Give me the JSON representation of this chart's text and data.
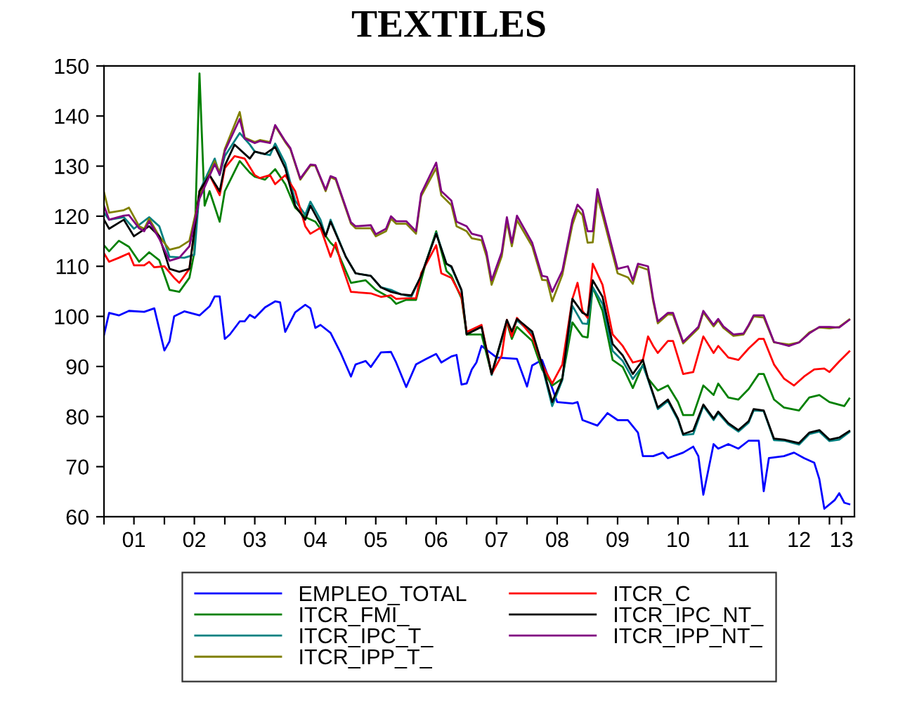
{
  "chart_data": {
    "type": "line",
    "title": "TEXTILES",
    "xlim": [
      "2001-01",
      "2013-06"
    ],
    "ylim": [
      60,
      150
    ],
    "yticks": [
      60,
      70,
      80,
      90,
      100,
      110,
      120,
      130,
      140,
      150
    ],
    "xticks": [
      {
        "value": "2001-01",
        "label": null
      },
      {
        "value": "2001-07",
        "label": "01"
      },
      {
        "value": "2002-01",
        "label": null
      },
      {
        "value": "2002-07",
        "label": "02"
      },
      {
        "value": "2003-01",
        "label": null
      },
      {
        "value": "2003-07",
        "label": "03"
      },
      {
        "value": "2004-01",
        "label": null
      },
      {
        "value": "2004-07",
        "label": "04"
      },
      {
        "value": "2005-01",
        "label": null
      },
      {
        "value": "2005-07",
        "label": "05"
      },
      {
        "value": "2006-01",
        "label": null
      },
      {
        "value": "2006-07",
        "label": "06"
      },
      {
        "value": "2007-01",
        "label": null
      },
      {
        "value": "2007-07",
        "label": "07"
      },
      {
        "value": "2008-01",
        "label": null
      },
      {
        "value": "2008-07",
        "label": "08"
      },
      {
        "value": "2009-01",
        "label": null
      },
      {
        "value": "2009-07",
        "label": "09"
      },
      {
        "value": "2010-01",
        "label": null
      },
      {
        "value": "2010-07",
        "label": "10"
      },
      {
        "value": "2011-01",
        "label": null
      },
      {
        "value": "2011-07",
        "label": "11"
      },
      {
        "value": "2012-01",
        "label": null
      },
      {
        "value": "2012-07",
        "label": "12"
      },
      {
        "value": "2013-01",
        "label": null
      },
      {
        "value": "2013-03-15",
        "label": "13"
      }
    ],
    "grid": false,
    "legend": "bottom",
    "marker": "none",
    "line_style": "solid",
    "series": [
      {
        "name": "EMPLEO_TOTAL",
        "color": "#0000ff",
        "x": [
          "2001-01",
          "2001-02",
          "2001-04",
          "2001-06",
          "2001-09",
          "2001-11",
          "2002-01",
          "2002-02",
          "2002-03",
          "2002-05",
          "2002-08",
          "2002-10",
          "2002-11",
          "2002-12",
          "2003-01",
          "2003-02",
          "2003-04",
          "2003-05",
          "2003-06",
          "2003-07",
          "2003-09",
          "2003-11",
          "2003-12",
          "2004-01",
          "2004-03",
          "2004-05",
          "2004-06",
          "2004-07",
          "2004-08",
          "2004-10",
          "2004-12",
          "2005-02",
          "2005-03",
          "2005-05",
          "2005-06",
          "2005-08",
          "2005-10",
          "2005-11",
          "2006-01",
          "2006-03",
          "2006-05",
          "2006-07",
          "2006-08",
          "2006-10",
          "2006-11",
          "2006-12",
          "2007-01",
          "2007-02",
          "2007-03",
          "2007-04",
          "2007-07",
          "2007-11",
          "2008-01",
          "2008-02",
          "2008-04",
          "2008-07",
          "2008-10",
          "2008-11",
          "2008-12",
          "2009-03",
          "2009-05",
          "2009-07",
          "2009-09",
          "2009-11",
          "2009-12",
          "2010-02",
          "2010-04",
          "2010-05",
          "2010-08",
          "2010-10",
          "2010-11",
          "2010-12",
          "2011-02",
          "2011-03",
          "2011-05",
          "2011-07",
          "2011-09",
          "2011-11",
          "2011-12",
          "2012-01",
          "2012-04",
          "2012-06",
          "2012-08",
          "2012-10",
          "2012-11",
          "2012-12",
          "2013-02",
          "2013-03",
          "2013-04",
          "2013-05"
        ],
        "values": [
          96.3,
          100.7,
          100.2,
          101.1,
          100.9,
          101.6,
          93.2,
          95.0,
          100.0,
          101.0,
          100.2,
          102.0,
          104.0,
          104.0,
          95.5,
          96.4,
          99.0,
          99.0,
          100.3,
          99.7,
          101.8,
          103.0,
          102.8,
          96.9,
          100.8,
          102.3,
          101.6,
          97.7,
          98.3,
          96.7,
          92.7,
          88.0,
          90.4,
          91.1,
          89.9,
          92.8,
          92.9,
          90.8,
          85.9,
          90.4,
          91.5,
          92.5,
          90.8,
          92.0,
          92.3,
          86.4,
          86.6,
          89.4,
          90.8,
          94.1,
          91.8,
          91.5,
          86.0,
          90.2,
          91.3,
          82.9,
          82.6,
          82.9,
          79.3,
          78.2,
          80.7,
          79.3,
          79.3,
          76.8,
          72.1,
          72.1,
          72.8,
          71.7,
          72.8,
          74.0,
          72.1,
          64.4,
          74.5,
          73.6,
          74.5,
          73.6,
          75.2,
          75.2,
          65.1,
          71.7,
          72.1,
          72.8,
          71.7,
          70.8,
          67.5,
          61.6,
          63.3,
          64.7,
          62.8,
          62.5
        ]
      },
      {
        "name": "ITCR_FMI_",
        "color": "#008000",
        "x": [
          "2001-01",
          "2001-02",
          "2001-04",
          "2001-06",
          "2001-08",
          "2001-10",
          "2001-12",
          "2002-02",
          "2002-04",
          "2002-06",
          "2002-07",
          "2002-08",
          "2002-09",
          "2002-10",
          "2002-12",
          "2003-01",
          "2003-04",
          "2003-06",
          "2003-07",
          "2003-09",
          "2003-11",
          "2004-01",
          "2004-03",
          "2004-05",
          "2004-07",
          "2004-10",
          "2004-11",
          "2005-02",
          "2005-05",
          "2005-07",
          "2005-10",
          "2005-11",
          "2006-01",
          "2006-03",
          "2006-05",
          "2006-07",
          "2006-09",
          "2006-10",
          "2006-12",
          "2007-01",
          "2007-04",
          "2007-06",
          "2007-09",
          "2007-10",
          "2007-11",
          "2008-02",
          "2008-04",
          "2008-06",
          "2008-08",
          "2008-10",
          "2008-12",
          "2009-01",
          "2009-02",
          "2009-04",
          "2009-06",
          "2009-08",
          "2009-10",
          "2009-12",
          "2010-01",
          "2010-03",
          "2010-05",
          "2010-07",
          "2010-08",
          "2010-10",
          "2010-12",
          "2011-02",
          "2011-03",
          "2011-05",
          "2011-07",
          "2011-09",
          "2011-11",
          "2011-12",
          "2012-02",
          "2012-04",
          "2012-07",
          "2012-09",
          "2012-11",
          "2013-01",
          "2013-04",
          "2013-05"
        ],
        "values": [
          114.2,
          113.0,
          115.1,
          113.9,
          110.9,
          112.8,
          111.2,
          105.3,
          104.9,
          107.7,
          112.8,
          148.5,
          122.1,
          125.0,
          118.9,
          125.0,
          131.0,
          128.7,
          127.9,
          127.3,
          129.4,
          126.4,
          121.7,
          119.8,
          118.9,
          114.7,
          113.7,
          106.7,
          107.2,
          105.3,
          103.6,
          102.5,
          103.3,
          103.3,
          110.9,
          117.0,
          109.1,
          108.1,
          103.6,
          96.4,
          96.4,
          88.5,
          98.8,
          95.5,
          97.9,
          95.1,
          89.4,
          86.2,
          87.6,
          98.8,
          96.0,
          95.8,
          105.8,
          101.1,
          91.3,
          89.9,
          85.7,
          90.4,
          87.6,
          85.2,
          86.2,
          82.9,
          80.3,
          80.3,
          86.2,
          84.3,
          86.6,
          83.8,
          83.4,
          85.5,
          88.5,
          88.5,
          83.4,
          81.8,
          81.2,
          83.8,
          84.3,
          82.9,
          82.1,
          83.6
        ]
      },
      {
        "name": "ITCR_IPC_T_",
        "color": "#008080",
        "x": [
          "2001-01",
          "2001-02",
          "2001-05",
          "2001-07",
          "2001-10",
          "2001-12",
          "2002-02",
          "2002-05",
          "2002-07",
          "2002-08",
          "2002-11",
          "2002-12",
          "2003-01",
          "2003-04",
          "2003-06",
          "2003-07",
          "2003-08",
          "2003-10",
          "2003-11",
          "2004-01",
          "2004-03",
          "2004-05",
          "2004-06",
          "2004-08",
          "2004-09",
          "2004-10",
          "2005-01",
          "2005-03",
          "2005-06",
          "2005-08",
          "2005-10",
          "2005-12",
          "2006-02",
          "2006-04",
          "2006-07",
          "2006-09",
          "2006-10",
          "2006-12",
          "2007-01",
          "2007-04",
          "2007-06",
          "2007-09",
          "2007-10",
          "2007-11",
          "2008-02",
          "2008-04",
          "2008-06",
          "2008-08",
          "2008-10",
          "2008-12",
          "2009-01",
          "2009-02",
          "2009-04",
          "2009-06",
          "2009-08",
          "2009-10",
          "2009-12",
          "2010-01",
          "2010-03",
          "2010-05",
          "2010-07",
          "2010-08",
          "2010-10",
          "2010-12",
          "2011-02",
          "2011-03",
          "2011-05",
          "2011-07",
          "2011-09",
          "2011-10",
          "2011-12",
          "2012-02",
          "2012-04",
          "2012-07",
          "2012-09",
          "2012-11",
          "2013-01",
          "2013-03",
          "2013-05"
        ],
        "values": [
          120.7,
          119.3,
          119.8,
          117.5,
          119.8,
          118.0,
          111.9,
          111.7,
          112.3,
          125.0,
          131.5,
          128.2,
          132.0,
          136.6,
          134.3,
          132.9,
          132.6,
          132.2,
          134.5,
          130.6,
          123.1,
          120.3,
          122.9,
          119.3,
          116.0,
          119.3,
          111.9,
          108.6,
          108.1,
          105.8,
          105.3,
          104.4,
          103.9,
          108.1,
          116.7,
          110.5,
          109.8,
          105.1,
          96.6,
          98.0,
          88.3,
          99.0,
          96.7,
          99.2,
          96.6,
          90.1,
          82.1,
          87.3,
          102.1,
          98.6,
          98.5,
          105.8,
          102.5,
          93.1,
          91.1,
          87.5,
          90.2,
          87.4,
          81.5,
          83.1,
          79.3,
          76.3,
          76.5,
          82.1,
          79.3,
          80.7,
          78.4,
          77.0,
          78.8,
          81.2,
          81.1,
          75.3,
          75.2,
          74.4,
          76.5,
          77.0,
          75.1,
          75.4,
          76.9
        ]
      },
      {
        "name": "ITCR_IPP_T_",
        "color": "#808000",
        "x": [
          "2001-01",
          "2001-02",
          "2001-05",
          "2001-06",
          "2001-08",
          "2001-09",
          "2001-10",
          "2001-12",
          "2002-02",
          "2002-04",
          "2002-06",
          "2002-08",
          "2002-11",
          "2002-12",
          "2003-01",
          "2003-04",
          "2003-05",
          "2003-07",
          "2003-08",
          "2003-10",
          "2003-11",
          "2004-01",
          "2004-02",
          "2004-04",
          "2004-06",
          "2004-07",
          "2004-09",
          "2004-10",
          "2004-11",
          "2005-02",
          "2005-03",
          "2005-06",
          "2005-07",
          "2005-09",
          "2005-10",
          "2005-11",
          "2006-01",
          "2006-03",
          "2006-04",
          "2006-07",
          "2006-08",
          "2006-10",
          "2006-11",
          "2007-01",
          "2007-02",
          "2007-04",
          "2007-05",
          "2007-06",
          "2007-08",
          "2007-09",
          "2007-10",
          "2007-11",
          "2008-02",
          "2008-04",
          "2008-05",
          "2008-06",
          "2008-08",
          "2008-10",
          "2008-11",
          "2008-12",
          "2009-01",
          "2009-02",
          "2009-03",
          "2009-04",
          "2009-07",
          "2009-09",
          "2009-10",
          "2009-11",
          "2010-01",
          "2010-02",
          "2010-03",
          "2010-05",
          "2010-06",
          "2010-08",
          "2010-11",
          "2010-12",
          "2011-02",
          "2011-03",
          "2011-04",
          "2011-06",
          "2011-08",
          "2011-09",
          "2011-10",
          "2011-12",
          "2012-02",
          "2012-05",
          "2012-07",
          "2012-09",
          "2012-11",
          "2013-01",
          "2013-03",
          "2013-05"
        ],
        "values": [
          124.8,
          120.7,
          121.2,
          121.7,
          118.0,
          117.5,
          119.5,
          116.0,
          113.3,
          113.8,
          115.1,
          124.0,
          131.0,
          128.7,
          133.4,
          140.8,
          135.7,
          134.8,
          135.2,
          134.8,
          138.0,
          134.8,
          133.4,
          127.3,
          130.1,
          130.1,
          125.0,
          127.8,
          127.3,
          118.5,
          117.6,
          117.6,
          116.0,
          117.0,
          119.5,
          118.5,
          118.5,
          116.5,
          124.0,
          129.6,
          124.2,
          122.2,
          118.0,
          117.0,
          115.6,
          115.2,
          112.0,
          106.3,
          112.0,
          118.9,
          114.0,
          119.2,
          114.0,
          107.3,
          107.2,
          103.0,
          108.3,
          118.3,
          121.3,
          120.2,
          114.7,
          114.8,
          124.0,
          120.2,
          108.6,
          107.8,
          106.5,
          110.0,
          109.3,
          103.0,
          98.6,
          100.4,
          100.3,
          94.6,
          97.6,
          100.8,
          98.0,
          99.2,
          97.7,
          96.1,
          96.4,
          98.1,
          100.0,
          99.8,
          94.8,
          94.4,
          94.8,
          96.8,
          97.8,
          97.6,
          97.9,
          99.4
        ]
      },
      {
        "name": "ITCR_C",
        "color": "#ff0000",
        "x": [
          "2001-01",
          "2001-02",
          "2001-04",
          "2001-06",
          "2001-07",
          "2001-09",
          "2001-10",
          "2001-11",
          "2002-01",
          "2002-03",
          "2002-04",
          "2002-06",
          "2002-08",
          "2002-10",
          "2002-12",
          "2003-01",
          "2003-03",
          "2003-05",
          "2003-07",
          "2003-08",
          "2003-10",
          "2003-11",
          "2004-01",
          "2004-03",
          "2004-05",
          "2004-06",
          "2004-08",
          "2004-10",
          "2004-11",
          "2004-12",
          "2005-02",
          "2005-06",
          "2005-08",
          "2005-10",
          "2005-11",
          "2006-01",
          "2006-03",
          "2006-04",
          "2006-07",
          "2006-08",
          "2006-10",
          "2006-12",
          "2007-01",
          "2007-04",
          "2007-06",
          "2007-08",
          "2007-09",
          "2007-10",
          "2007-11",
          "2008-02",
          "2008-04",
          "2008-06",
          "2008-08",
          "2008-10",
          "2008-11",
          "2008-12",
          "2009-01",
          "2009-02",
          "2009-04",
          "2009-06",
          "2009-08",
          "2009-10",
          "2009-12",
          "2010-01",
          "2010-02",
          "2010-03",
          "2010-05",
          "2010-06",
          "2010-08",
          "2010-10",
          "2010-12",
          "2011-02",
          "2011-03",
          "2011-05",
          "2011-07",
          "2011-09",
          "2011-11",
          "2011-12",
          "2012-02",
          "2012-04",
          "2012-06",
          "2012-08",
          "2012-10",
          "2012-12",
          "2013-01",
          "2013-03",
          "2013-05"
        ],
        "values": [
          112.6,
          110.9,
          111.7,
          112.6,
          110.2,
          110.2,
          110.9,
          109.8,
          110.0,
          107.7,
          106.7,
          109.5,
          125.0,
          128.2,
          124.2,
          129.6,
          132.0,
          131.5,
          128.2,
          127.6,
          128.2,
          126.4,
          128.2,
          125.0,
          118.0,
          116.5,
          117.7,
          111.9,
          114.7,
          110.9,
          104.9,
          104.6,
          103.9,
          104.2,
          103.5,
          103.6,
          103.6,
          108.6,
          114.2,
          108.6,
          107.7,
          103.9,
          96.9,
          98.3,
          88.5,
          92.2,
          99.3,
          96.0,
          99.7,
          96.0,
          90.4,
          86.6,
          90.4,
          103.5,
          106.7,
          101.1,
          99.7,
          110.5,
          106.3,
          96.4,
          94.1,
          90.8,
          91.3,
          96.0,
          94.1,
          92.7,
          95.1,
          95.1,
          88.5,
          88.9,
          96.0,
          92.7,
          94.1,
          91.8,
          91.3,
          93.6,
          95.5,
          95.5,
          90.4,
          87.6,
          86.2,
          88.0,
          89.4,
          89.6,
          88.9,
          91.0,
          93.0
        ]
      },
      {
        "name": "ITCR_IPC_NT_",
        "color": "#000000",
        "x": [
          "2001-01",
          "2001-02",
          "2001-05",
          "2001-07",
          "2001-10",
          "2001-12",
          "2002-02",
          "2002-04",
          "2002-06",
          "2002-08",
          "2002-10",
          "2002-12",
          "2003-01",
          "2003-03",
          "2003-06",
          "2003-07",
          "2003-09",
          "2003-11",
          "2004-01",
          "2004-03",
          "2004-05",
          "2004-06",
          "2004-08",
          "2004-09",
          "2004-10",
          "2005-01",
          "2005-03",
          "2005-06",
          "2005-08",
          "2005-10",
          "2005-12",
          "2006-02",
          "2006-04",
          "2006-07",
          "2006-09",
          "2006-10",
          "2006-12",
          "2007-01",
          "2007-04",
          "2007-06",
          "2007-09",
          "2007-10",
          "2007-11",
          "2008-02",
          "2008-04",
          "2008-06",
          "2008-08",
          "2008-10",
          "2008-12",
          "2009-01",
          "2009-02",
          "2009-04",
          "2009-06",
          "2009-08",
          "2009-10",
          "2009-12",
          "2010-01",
          "2010-03",
          "2010-05",
          "2010-07",
          "2010-08",
          "2010-10",
          "2010-12",
          "2011-02",
          "2011-03",
          "2011-05",
          "2011-07",
          "2011-09",
          "2011-10",
          "2011-12",
          "2012-02",
          "2012-04",
          "2012-07",
          "2012-09",
          "2012-11",
          "2013-01",
          "2013-03",
          "2013-05"
        ],
        "values": [
          119.3,
          117.5,
          119.3,
          116.0,
          118.0,
          116.0,
          109.5,
          108.9,
          109.5,
          125.0,
          128.2,
          125.0,
          130.1,
          134.3,
          131.5,
          132.9,
          132.4,
          133.8,
          129.6,
          122.1,
          119.3,
          122.1,
          118.4,
          116.0,
          118.9,
          111.9,
          108.6,
          108.1,
          105.8,
          104.9,
          104.4,
          104.2,
          108.1,
          116.5,
          110.5,
          110.0,
          105.3,
          96.4,
          97.9,
          88.5,
          99.3,
          97.0,
          99.5,
          97.0,
          90.4,
          82.9,
          87.6,
          103.5,
          100.7,
          100.2,
          107.2,
          103.9,
          94.5,
          92.2,
          88.5,
          91.3,
          87.6,
          81.8,
          83.4,
          79.6,
          76.5,
          77.2,
          82.4,
          79.6,
          81.0,
          78.7,
          77.3,
          79.1,
          81.5,
          81.2,
          75.6,
          75.4,
          74.7,
          76.8,
          77.3,
          75.4,
          75.8,
          77.1
        ]
      },
      {
        "name": "ITCR_IPP_NT_",
        "color": "#800080",
        "x": [
          "2001-01",
          "2001-02",
          "2001-05",
          "2001-06",
          "2001-08",
          "2001-09",
          "2001-10",
          "2001-12",
          "2002-02",
          "2002-04",
          "2002-06",
          "2002-08",
          "2002-11",
          "2002-12",
          "2003-01",
          "2003-04",
          "2003-05",
          "2003-07",
          "2003-08",
          "2003-10",
          "2003-11",
          "2004-01",
          "2004-02",
          "2004-04",
          "2004-06",
          "2004-07",
          "2004-09",
          "2004-10",
          "2004-11",
          "2005-02",
          "2005-03",
          "2005-06",
          "2005-07",
          "2005-09",
          "2005-10",
          "2005-11",
          "2006-01",
          "2006-03",
          "2006-04",
          "2006-07",
          "2006-08",
          "2006-10",
          "2006-11",
          "2007-01",
          "2007-02",
          "2007-04",
          "2007-05",
          "2007-06",
          "2007-08",
          "2007-09",
          "2007-10",
          "2007-11",
          "2008-02",
          "2008-04",
          "2008-05",
          "2008-06",
          "2008-08",
          "2008-10",
          "2008-11",
          "2008-12",
          "2009-01",
          "2009-02",
          "2009-03",
          "2009-04",
          "2009-07",
          "2009-09",
          "2009-10",
          "2009-11",
          "2010-01",
          "2010-02",
          "2010-03",
          "2010-05",
          "2010-06",
          "2010-08",
          "2010-11",
          "2010-12",
          "2011-02",
          "2011-03",
          "2011-04",
          "2011-06",
          "2011-08",
          "2011-09",
          "2011-10",
          "2011-12",
          "2012-02",
          "2012-05",
          "2012-07",
          "2012-09",
          "2012-11",
          "2013-01",
          "2013-03",
          "2013-05"
        ],
        "values": [
          122.1,
          119.3,
          120.1,
          120.2,
          117.6,
          117.0,
          119.0,
          115.5,
          111.1,
          111.7,
          114.0,
          123.5,
          130.4,
          128.3,
          133.0,
          139.4,
          135.5,
          134.6,
          135.0,
          134.6,
          138.2,
          135.0,
          133.6,
          127.5,
          130.3,
          130.2,
          125.3,
          128.0,
          127.6,
          118.8,
          118.0,
          118.2,
          116.4,
          117.5,
          120.0,
          119.0,
          119.0,
          117.0,
          124.5,
          130.7,
          125.0,
          123.1,
          118.9,
          118.0,
          116.5,
          116.0,
          112.8,
          107.2,
          112.8,
          119.8,
          114.7,
          120.1,
          114.7,
          108.1,
          107.9,
          104.9,
          109.1,
          119.3,
          122.3,
          121.2,
          117.0,
          117.0,
          125.4,
          121.2,
          109.5,
          110.0,
          107.2,
          110.5,
          110.0,
          103.5,
          99.0,
          100.7,
          100.7,
          94.9,
          97.9,
          101.1,
          98.3,
          99.5,
          98.0,
          96.4,
          96.6,
          98.3,
          100.2,
          100.2,
          94.9,
          94.1,
          94.8,
          96.6,
          97.9,
          97.9,
          97.8,
          99.3
        ]
      }
    ]
  }
}
